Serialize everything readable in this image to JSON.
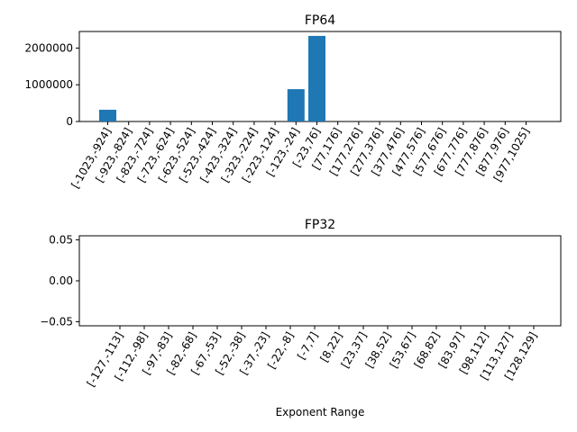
{
  "chart_data": [
    {
      "type": "bar",
      "title": "FP64",
      "xlabel": "",
      "ylabel": "",
      "categories": [
        "[-1023,-924]",
        "[-923,-824]",
        "[-823,-724]",
        "[-723,-624]",
        "[-623,-524]",
        "[-523,-424]",
        "[-423,-324]",
        "[-323,-224]",
        "[-223,-124]",
        "[-123,-24]",
        "[-23,76]",
        "[77,176]",
        "[177,276]",
        "[277,376]",
        "[377,476]",
        "[477,576]",
        "[577,676]",
        "[677,776]",
        "[777,876]",
        "[877,976]",
        "[977,1025]"
      ],
      "values": [
        320000,
        0,
        0,
        0,
        0,
        0,
        0,
        0,
        0,
        880000,
        2330000,
        0,
        0,
        0,
        0,
        0,
        0,
        0,
        0,
        0,
        0
      ],
      "yticks": [
        0,
        1000000,
        2000000
      ],
      "ytick_labels": [
        "0",
        "1000000",
        "2000000"
      ],
      "ylim": [
        0,
        2450000
      ],
      "bar_color": "#1f77b4",
      "grid": false,
      "legend": "none"
    },
    {
      "type": "bar",
      "title": "FP32",
      "xlabel": "Exponent Range",
      "ylabel": "",
      "categories": [
        "[-127,-113]",
        "[-112,-98]",
        "[-97,-83]",
        "[-82,-68]",
        "[-67,-53]",
        "[-52,-38]",
        "[-37,-23]",
        "[-22,-8]",
        "[-7,7]",
        "[8,22]",
        "[23,37]",
        "[38,52]",
        "[53,67]",
        "[68,82]",
        "[83,97]",
        "[98,112]",
        "[113,127]",
        "[128,129]"
      ],
      "values": [
        0,
        0,
        0,
        0,
        0,
        0,
        0,
        0,
        0,
        0,
        0,
        0,
        0,
        0,
        0,
        0,
        0,
        0
      ],
      "yticks": [
        -0.05,
        0.0,
        0.05
      ],
      "ytick_labels": [
        "−0.05",
        "0.00",
        "0.05"
      ],
      "ylim": [
        -0.055,
        0.055
      ],
      "bar_color": "#1f77b4",
      "grid": false,
      "legend": "none"
    }
  ]
}
